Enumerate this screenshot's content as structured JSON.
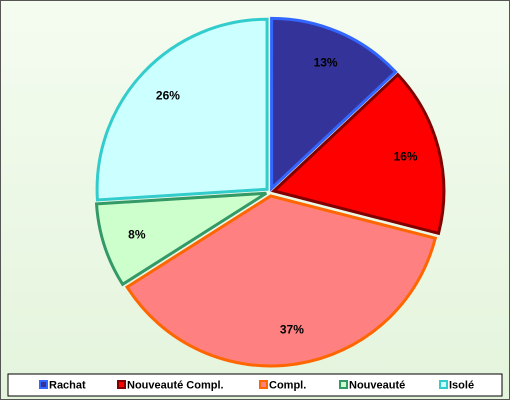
{
  "chart_data": {
    "type": "pie",
    "categories": [
      "Rachat",
      "Nouveauté Compl.",
      "Compl.",
      "Nouveauté",
      "Isolé"
    ],
    "values": [
      13,
      16,
      37,
      8,
      26
    ],
    "value_labels": [
      "13%",
      "16%",
      "37%",
      "8%",
      "26%"
    ],
    "colors": [
      "#333399",
      "#ff0000",
      "#ff8080",
      "#ccffcc",
      "#ccffff"
    ],
    "edge_colors": [
      "#3366ff",
      "#800000",
      "#ff6600",
      "#339966",
      "#33cccc"
    ],
    "legend": "bottom"
  }
}
